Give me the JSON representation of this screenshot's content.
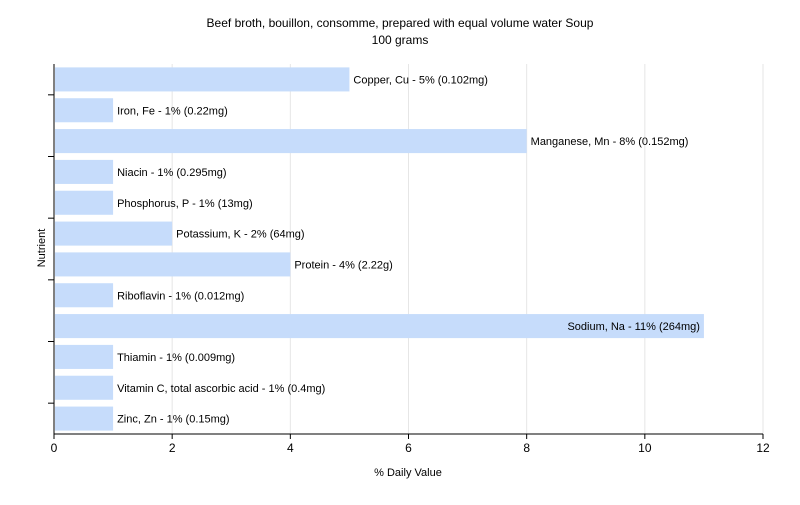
{
  "chart_data": {
    "type": "bar",
    "orientation": "horizontal",
    "title": "Beef broth, bouillon, consomme, prepared with equal volume water Soup",
    "subtitle": "100 grams",
    "xlabel": "% Daily Value",
    "ylabel": "Nutrient",
    "xlim": [
      0,
      12
    ],
    "xticks": [
      0,
      2,
      4,
      6,
      8,
      10,
      12
    ],
    "grid": true,
    "bar_color": "#c6dcfb",
    "categories": [
      "Copper, Cu",
      "Iron, Fe",
      "Manganese, Mn",
      "Niacin",
      "Phosphorus, P",
      "Potassium, K",
      "Protein",
      "Riboflavin",
      "Sodium, Na",
      "Thiamin",
      "Vitamin C, total ascorbic acid",
      "Zinc, Zn"
    ],
    "values": [
      5,
      1,
      8,
      1,
      1,
      2,
      4,
      1,
      11,
      1,
      1,
      1
    ],
    "labels": [
      "Copper, Cu - 5% (0.102mg)",
      "Iron, Fe - 1% (0.22mg)",
      "Manganese, Mn - 8% (0.152mg)",
      "Niacin - 1% (0.295mg)",
      "Phosphorus, P - 1% (13mg)",
      "Potassium, K - 2% (64mg)",
      "Protein - 4% (2.22g)",
      "Riboflavin - 1% (0.012mg)",
      "Sodium, Na - 11% (264mg)",
      "Thiamin - 1% (0.009mg)",
      "Vitamin C, total ascorbic acid - 1% (0.4mg)",
      "Zinc, Zn - 1% (0.15mg)"
    ]
  }
}
